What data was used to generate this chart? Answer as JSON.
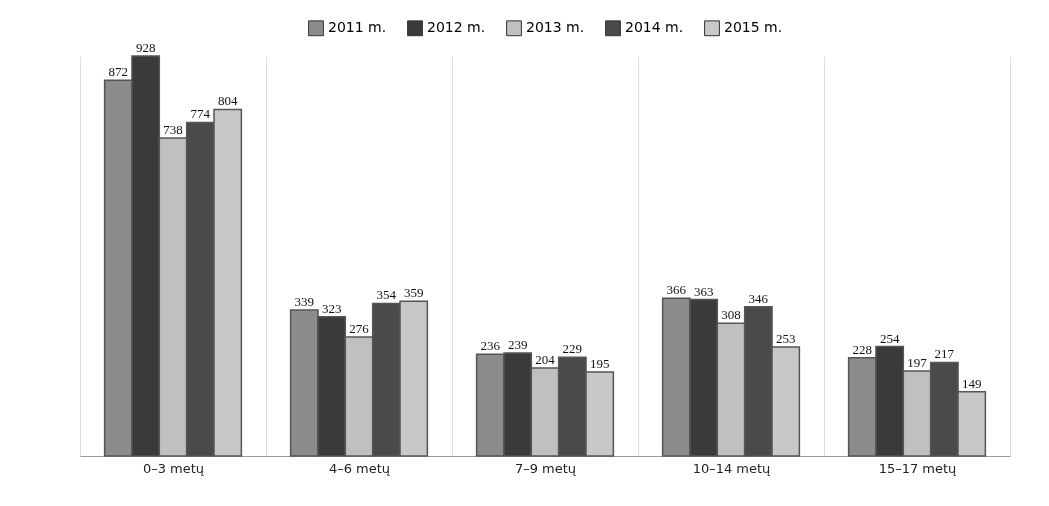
{
  "chart_data": {
    "type": "bar",
    "categories": [
      "0–3 metų",
      "4–6 metų",
      "7–9 metų",
      "10–14 metų",
      "15–17 metų"
    ],
    "series": [
      {
        "name": "2011 m.",
        "color": "#8c8c8e",
        "values": [
          872,
          339,
          236,
          366,
          228
        ]
      },
      {
        "name": "2012 m.",
        "color": "#3a3a3c",
        "values": [
          928,
          323,
          239,
          363,
          254
        ]
      },
      {
        "name": "2013 m.",
        "color": "#c0c0c2",
        "values": [
          738,
          276,
          204,
          308,
          197
        ]
      },
      {
        "name": "2014 m.",
        "color": "#4a4a4c",
        "values": [
          774,
          354,
          229,
          346,
          217
        ]
      },
      {
        "name": "2015 m.",
        "color": "#c8c8ca",
        "values": [
          804,
          359,
          195,
          253,
          149
        ]
      }
    ],
    "data_labels": true,
    "grid": "x",
    "legend": "top",
    "tick_labels": "x"
  }
}
